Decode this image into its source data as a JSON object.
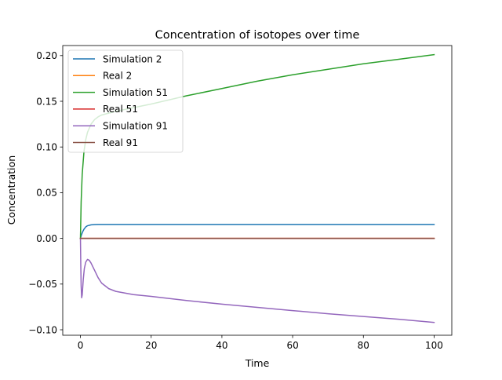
{
  "chart_data": {
    "type": "line",
    "title": "Concentration of isotopes over time",
    "xlabel": "Time",
    "ylabel": "Concentration",
    "xlim": [
      -5,
      105
    ],
    "ylim": [
      -0.106,
      0.211
    ],
    "xticks": [
      0,
      20,
      40,
      60,
      80,
      100
    ],
    "xtick_labels": [
      "0",
      "20",
      "40",
      "60",
      "80",
      "100"
    ],
    "yticks": [
      -0.1,
      -0.05,
      0.0,
      0.05,
      0.1,
      0.15,
      0.2
    ],
    "ytick_labels": [
      "−0.10",
      "−0.05",
      "0.00",
      "0.05",
      "0.10",
      "0.15",
      "0.20"
    ],
    "legend_position": "upper-left",
    "series": [
      {
        "name": "Simulation 2",
        "color": "#1f77b4",
        "x": [
          0,
          0.3,
          0.6,
          1,
          1.5,
          2,
          3,
          4,
          5,
          6,
          8,
          10,
          20,
          40,
          60,
          80,
          100
        ],
        "y": [
          0,
          0.004,
          0.007,
          0.01,
          0.0125,
          0.0138,
          0.0148,
          0.0151,
          0.0152,
          0.0152,
          0.0152,
          0.0152,
          0.0152,
          0.0152,
          0.0152,
          0.0152,
          0.0152
        ]
      },
      {
        "name": "Real 2",
        "color": "#ff7f0e",
        "x": [
          0,
          100
        ],
        "y": [
          0,
          0
        ]
      },
      {
        "name": "Simulation 51",
        "color": "#2ca02c",
        "x": [
          0,
          0.2,
          0.5,
          1,
          1.5,
          2,
          3,
          4,
          5,
          6,
          8,
          10,
          15,
          20,
          30,
          40,
          50,
          60,
          70,
          80,
          90,
          100
        ],
        "y": [
          0,
          0.04,
          0.07,
          0.095,
          0.108,
          0.116,
          0.125,
          0.13,
          0.133,
          0.135,
          0.137,
          0.139,
          0.143,
          0.147,
          0.156,
          0.164,
          0.172,
          0.179,
          0.185,
          0.191,
          0.196,
          0.201
        ]
      },
      {
        "name": "Real 51",
        "color": "#d62728",
        "x": [
          0,
          100
        ],
        "y": [
          0,
          0
        ]
      },
      {
        "name": "Simulation 91",
        "color": "#9467bd",
        "x": [
          0,
          0.1,
          0.2,
          0.35,
          0.5,
          0.8,
          1.1,
          1.5,
          2,
          2.5,
          3,
          4,
          5,
          6,
          8,
          10,
          15,
          20,
          30,
          40,
          50,
          60,
          70,
          80,
          90,
          100
        ],
        "y": [
          0,
          -0.03,
          -0.052,
          -0.065,
          -0.062,
          -0.045,
          -0.033,
          -0.026,
          -0.023,
          -0.024,
          -0.027,
          -0.035,
          -0.043,
          -0.049,
          -0.055,
          -0.058,
          -0.0615,
          -0.0635,
          -0.068,
          -0.072,
          -0.0755,
          -0.079,
          -0.0825,
          -0.0855,
          -0.0885,
          -0.092
        ]
      },
      {
        "name": "Real 91",
        "color": "#8c564b",
        "x": [
          0,
          100
        ],
        "y": [
          0,
          0
        ]
      }
    ]
  }
}
